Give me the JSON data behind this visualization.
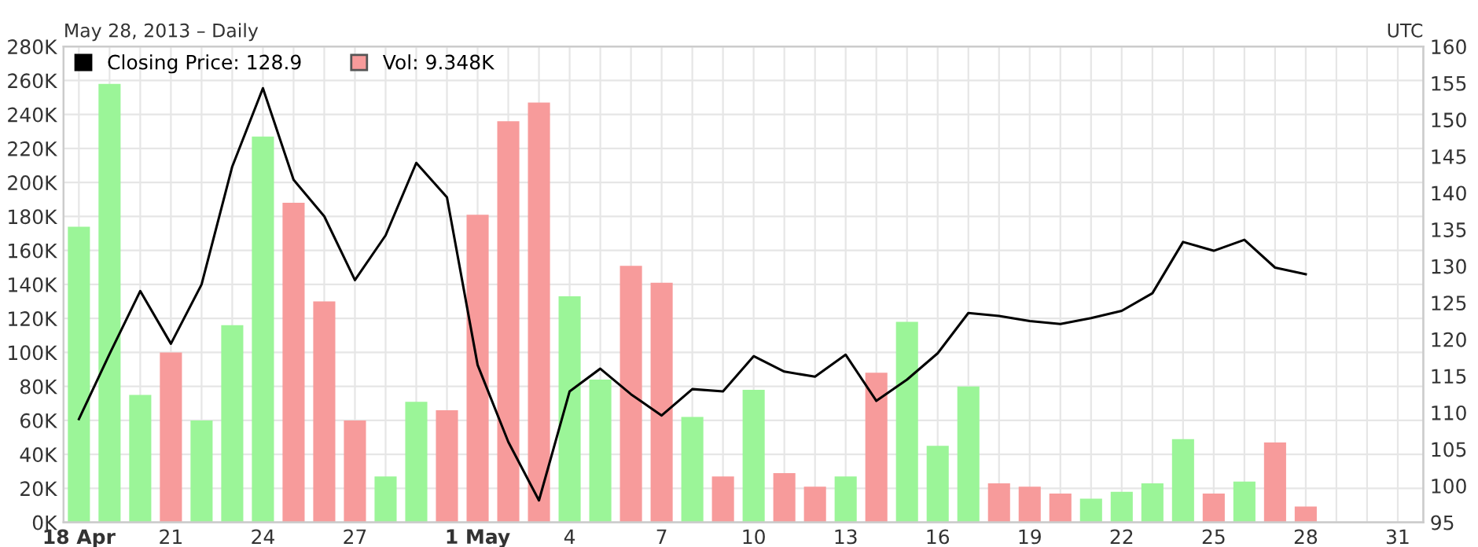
{
  "chart_data": {
    "type": "bar",
    "subtitle": "May 28, 2013 – Daily",
    "annotations": [
      "UTC"
    ],
    "x": [
      "2013-04-18",
      "2013-04-19",
      "2013-04-20",
      "2013-04-21",
      "2013-04-22",
      "2013-04-23",
      "2013-04-24",
      "2013-04-25",
      "2013-04-26",
      "2013-04-27",
      "2013-04-28",
      "2013-04-29",
      "2013-04-30",
      "2013-05-01",
      "2013-05-02",
      "2013-05-03",
      "2013-05-04",
      "2013-05-05",
      "2013-05-06",
      "2013-05-07",
      "2013-05-08",
      "2013-05-09",
      "2013-05-10",
      "2013-05-11",
      "2013-05-12",
      "2013-05-13",
      "2013-05-14",
      "2013-05-15",
      "2013-05-16",
      "2013-05-17",
      "2013-05-18",
      "2013-05-19",
      "2013-05-20",
      "2013-05-21",
      "2013-05-22",
      "2013-05-23",
      "2013-05-24",
      "2013-05-25",
      "2013-05-26",
      "2013-05-27",
      "2013-05-28"
    ],
    "series": [
      {
        "name": "Vol: 9.348K",
        "color": "#f79b9b",
        "axis": "y",
        "colors": [
          "#9bf598",
          "#9bf598",
          "#9bf598",
          "#f79b9b",
          "#9bf598",
          "#9bf598",
          "#9bf598",
          "#f79b9b",
          "#f79b9b",
          "#f79b9b",
          "#9bf598",
          "#9bf598",
          "#f79b9b",
          "#f79b9b",
          "#f79b9b",
          "#f79b9b",
          "#9bf598",
          "#9bf598",
          "#f79b9b",
          "#f79b9b",
          "#9bf598",
          "#f79b9b",
          "#9bf598",
          "#f79b9b",
          "#f79b9b",
          "#9bf598",
          "#f79b9b",
          "#9bf598",
          "#9bf598",
          "#9bf598",
          "#f79b9b",
          "#f79b9b",
          "#f79b9b",
          "#9bf598",
          "#9bf598",
          "#9bf598",
          "#9bf598",
          "#f79b9b",
          "#9bf598",
          "#f79b9b",
          "#f79b9b"
        ],
        "values": [
          174000,
          258000,
          75000,
          100000,
          60000,
          116000,
          227000,
          188000,
          130000,
          60000,
          27000,
          71000,
          66000,
          181000,
          236000,
          247000,
          133000,
          84000,
          151000,
          141000,
          62000,
          27000,
          78000,
          29000,
          21000,
          27000,
          88000,
          118000,
          45000,
          80000,
          23000,
          21000,
          17000,
          14000,
          18000,
          23000,
          49000,
          17000,
          24000,
          47000,
          9348
        ]
      },
      {
        "name": "Closing Price: 128.9",
        "type": "line",
        "color": "#000000",
        "axis": "y2",
        "values": [
          109.1,
          118,
          126.6,
          119.4,
          127.5,
          143.6,
          154.3,
          141.8,
          136.8,
          128.1,
          134.2,
          144.1,
          139.4,
          116.5,
          106,
          98,
          112.9,
          116,
          112.5,
          109.6,
          113.2,
          112.9,
          117.7,
          115.6,
          114.9,
          117.9,
          111.6,
          114.5,
          118.1,
          123.6,
          123.2,
          122.5,
          122.1,
          122.9,
          123.9,
          126.3,
          133.3,
          132.1,
          133.6,
          129.8,
          128.9
        ]
      }
    ],
    "xlim": [
      "2013-04-17T12:00",
      "2013-05-31T20:00"
    ],
    "xticks": [
      {
        "value": "2013-04-18",
        "label": "18 Apr"
      },
      {
        "value": "2013-04-19",
        "label": null
      },
      {
        "value": "2013-04-20",
        "label": null
      },
      {
        "value": "2013-04-21",
        "label": "21"
      },
      {
        "value": "2013-04-22",
        "label": null
      },
      {
        "value": "2013-04-23",
        "label": null
      },
      {
        "value": "2013-04-24",
        "label": "24"
      },
      {
        "value": "2013-04-25",
        "label": null
      },
      {
        "value": "2013-04-26",
        "label": null
      },
      {
        "value": "2013-04-27",
        "label": "27"
      },
      {
        "value": "2013-04-28",
        "label": null
      },
      {
        "value": "2013-04-29",
        "label": null
      },
      {
        "value": "2013-04-30",
        "label": null
      },
      {
        "value": "2013-05-01",
        "label": "1 May"
      },
      {
        "value": "2013-05-02",
        "label": null
      },
      {
        "value": "2013-05-03",
        "label": null
      },
      {
        "value": "2013-05-04",
        "label": "4"
      },
      {
        "value": "2013-05-05",
        "label": null
      },
      {
        "value": "2013-05-06",
        "label": null
      },
      {
        "value": "2013-05-07",
        "label": "7"
      },
      {
        "value": "2013-05-08",
        "label": null
      },
      {
        "value": "2013-05-09",
        "label": null
      },
      {
        "value": "2013-05-10",
        "label": "10"
      },
      {
        "value": "2013-05-11",
        "label": null
      },
      {
        "value": "2013-05-12",
        "label": null
      },
      {
        "value": "2013-05-13",
        "label": "13"
      },
      {
        "value": "2013-05-14",
        "label": null
      },
      {
        "value": "2013-05-15",
        "label": null
      },
      {
        "value": "2013-05-16",
        "label": "16"
      },
      {
        "value": "2013-05-17",
        "label": null
      },
      {
        "value": "2013-05-18",
        "label": null
      },
      {
        "value": "2013-05-19",
        "label": "19"
      },
      {
        "value": "2013-05-20",
        "label": null
      },
      {
        "value": "2013-05-21",
        "label": null
      },
      {
        "value": "2013-05-22",
        "label": "22"
      },
      {
        "value": "2013-05-23",
        "label": null
      },
      {
        "value": "2013-05-24",
        "label": null
      },
      {
        "value": "2013-05-25",
        "label": "25"
      },
      {
        "value": "2013-05-26",
        "label": null
      },
      {
        "value": "2013-05-27",
        "label": null
      },
      {
        "value": "2013-05-28",
        "label": "28"
      },
      {
        "value": "2013-05-29",
        "label": null
      },
      {
        "value": "2013-05-30",
        "label": null
      },
      {
        "value": "2013-05-31",
        "label": "31"
      }
    ],
    "ylim": [
      0,
      280000
    ],
    "yticks": [
      {
        "value": 0,
        "label": "0K"
      },
      {
        "value": 20000,
        "label": "20K"
      },
      {
        "value": 40000,
        "label": "40K"
      },
      {
        "value": 60000,
        "label": "60K"
      },
      {
        "value": 80000,
        "label": "80K"
      },
      {
        "value": 100000,
        "label": "100K"
      },
      {
        "value": 120000,
        "label": "120K"
      },
      {
        "value": 140000,
        "label": "140K"
      },
      {
        "value": 160000,
        "label": "160K"
      },
      {
        "value": 180000,
        "label": "180K"
      },
      {
        "value": 200000,
        "label": "200K"
      },
      {
        "value": 220000,
        "label": "220K"
      },
      {
        "value": 240000,
        "label": "240K"
      },
      {
        "value": 260000,
        "label": "260K"
      },
      {
        "value": 280000,
        "label": "280K"
      }
    ],
    "y2lim": [
      95,
      160
    ],
    "y2ticks": [
      95,
      100,
      105,
      110,
      115,
      120,
      125,
      130,
      135,
      140,
      145,
      150,
      155,
      160
    ],
    "grid": true,
    "legend": "top left",
    "marker": "none",
    "line_style": "solid"
  }
}
